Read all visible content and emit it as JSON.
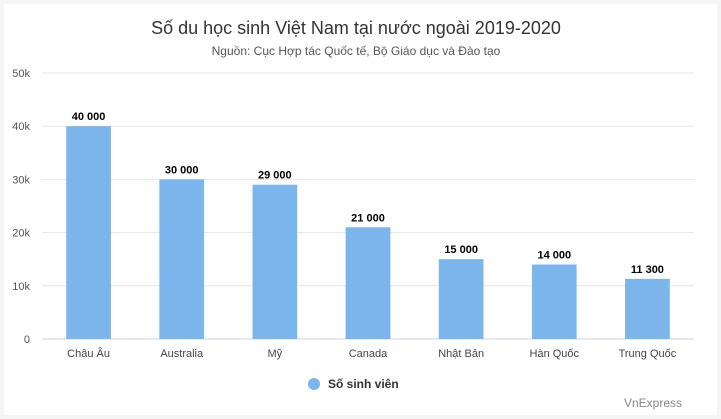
{
  "chart_data": {
    "type": "bar",
    "title": "Số du học sinh Việt Nam tại nước ngoài 2019-2020",
    "subtitle": "Nguồn: Cục Hợp tác Quốc tế, Bộ Giáo dục và Đào tạo",
    "categories": [
      "Châu Âu",
      "Australia",
      "Mỹ",
      "Canada",
      "Nhật Bản",
      "Hàn Quốc",
      "Trung Quốc"
    ],
    "series": [
      {
        "name": "Số sinh viên",
        "values": [
          40000,
          30000,
          29000,
          21000,
          15000,
          14000,
          11300
        ],
        "data_labels": [
          "40 000",
          "30 000",
          "29 000",
          "21 000",
          "15 000",
          "14 000",
          "11 300"
        ],
        "color": "#7cb5ec"
      }
    ],
    "ylim": [
      0,
      50000
    ],
    "yticks": [
      0,
      10000,
      20000,
      30000,
      40000,
      50000
    ],
    "ytick_labels": [
      "0",
      "10k",
      "20k",
      "30k",
      "40k",
      "50k"
    ],
    "grid": true,
    "legend_position": "bottom-center",
    "credit": "VnExpress"
  }
}
